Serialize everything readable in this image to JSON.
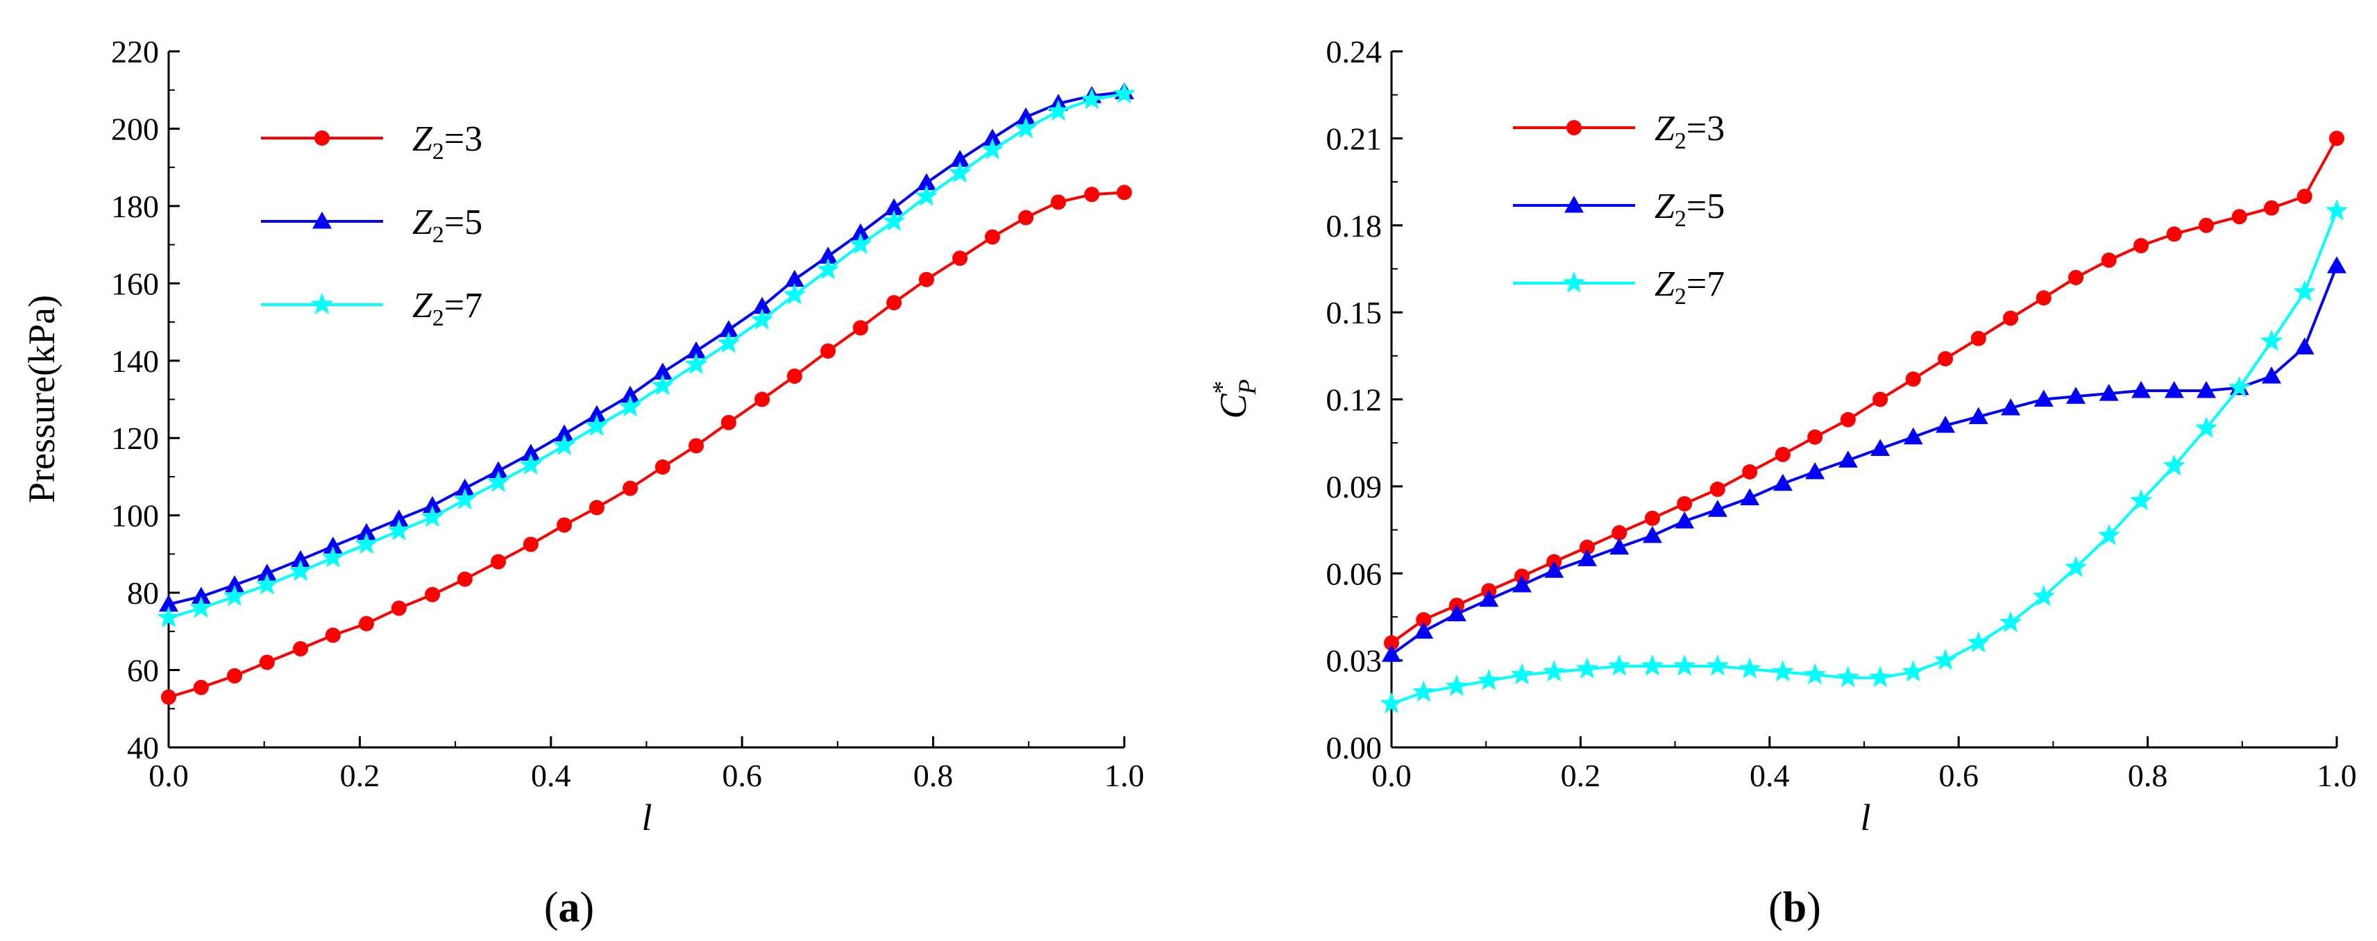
{
  "chart_data": [
    {
      "type": "line",
      "panel_label": "a",
      "xlabel": "l",
      "ylabel": "Pressure(kPa)",
      "xlim": [
        0.0,
        1.0
      ],
      "ylim": [
        40,
        220
      ],
      "xticks": [
        "0.0",
        "0.2",
        "0.4",
        "0.6",
        "0.8",
        "1.0"
      ],
      "yticks": [
        "40",
        "60",
        "80",
        "100",
        "120",
        "140",
        "160",
        "180",
        "200",
        "220"
      ],
      "legend": {
        "placement": "top-left",
        "entries": [
          {
            "var": "Z",
            "sub": "2",
            "rest": "=3"
          },
          {
            "var": "Z",
            "sub": "2",
            "rest": "=5"
          },
          {
            "var": "Z",
            "sub": "2",
            "rest": "=7"
          }
        ]
      },
      "series": [
        {
          "name": "Z2=3",
          "color": "#ff0000",
          "marker": "circle",
          "x": [
            0.0,
            0.034,
            0.069,
            0.103,
            0.138,
            0.172,
            0.207,
            0.241,
            0.276,
            0.31,
            0.345,
            0.379,
            0.414,
            0.448,
            0.483,
            0.517,
            0.552,
            0.586,
            0.621,
            0.655,
            0.69,
            0.724,
            0.759,
            0.793,
            0.828,
            0.862,
            0.897,
            0.931,
            0.966,
            1.0
          ],
          "values": [
            53,
            55.5,
            58.5,
            62,
            65.5,
            69,
            72,
            76,
            79.5,
            83.5,
            88,
            92.5,
            97.5,
            102,
            107,
            112.5,
            118,
            124,
            130,
            136,
            142.5,
            148.5,
            155,
            161,
            166.5,
            172,
            177,
            181,
            183,
            183.5
          ]
        },
        {
          "name": "Z2=5",
          "color": "#0000ff",
          "marker": "triangle",
          "x": [
            0.0,
            0.034,
            0.069,
            0.103,
            0.138,
            0.172,
            0.207,
            0.241,
            0.276,
            0.31,
            0.345,
            0.379,
            0.414,
            0.448,
            0.483,
            0.517,
            0.552,
            0.586,
            0.621,
            0.655,
            0.69,
            0.724,
            0.759,
            0.793,
            0.828,
            0.862,
            0.897,
            0.931,
            0.966,
            1.0
          ],
          "values": [
            77,
            79,
            82,
            85,
            88.5,
            92,
            95.5,
            99,
            102.5,
            107,
            111.5,
            116,
            121,
            126,
            131,
            137,
            142.5,
            148,
            154,
            161,
            167,
            173,
            179.5,
            186,
            192,
            197.5,
            203,
            206.5,
            208.5,
            209.5
          ]
        },
        {
          "name": "Z2=7",
          "color": "#00ffff",
          "marker": "star",
          "x": [
            0.0,
            0.034,
            0.069,
            0.103,
            0.138,
            0.172,
            0.207,
            0.241,
            0.276,
            0.31,
            0.345,
            0.379,
            0.414,
            0.448,
            0.483,
            0.517,
            0.552,
            0.586,
            0.621,
            0.655,
            0.69,
            0.724,
            0.759,
            0.793,
            0.828,
            0.862,
            0.897,
            0.931,
            0.966,
            1.0
          ],
          "values": [
            73.5,
            76,
            79,
            82,
            85.5,
            89,
            92.5,
            96,
            99.5,
            104,
            108.5,
            113,
            118,
            123,
            128,
            133.5,
            139,
            144.5,
            150.5,
            157,
            163.5,
            170,
            176,
            182.5,
            188.5,
            194.5,
            200,
            204.5,
            207.5,
            209
          ]
        }
      ]
    },
    {
      "type": "line",
      "panel_label": "b",
      "xlabel": "l",
      "ylabel": "C",
      "ylabel_sub": "P",
      "ylabel_sup": "*",
      "xlim": [
        0.0,
        1.0
      ],
      "ylim": [
        0.0,
        0.24
      ],
      "xticks": [
        "0.0",
        "0.2",
        "0.4",
        "0.6",
        "0.8",
        "1.0"
      ],
      "yticks": [
        "0.00",
        "0.03",
        "0.06",
        "0.09",
        "0.12",
        "0.15",
        "0.18",
        "0.21",
        "0.24"
      ],
      "legend": {
        "placement": "top-left",
        "entries": [
          {
            "var": "Z",
            "sub": "2",
            "rest": "=3"
          },
          {
            "var": "Z",
            "sub": "2",
            "rest": "=5"
          },
          {
            "var": "Z",
            "sub": "2",
            "rest": "=7"
          }
        ]
      },
      "series": [
        {
          "name": "Z2=3",
          "color": "#ff0000",
          "marker": "circle",
          "x": [
            0.0,
            0.034,
            0.069,
            0.103,
            0.138,
            0.172,
            0.207,
            0.241,
            0.276,
            0.31,
            0.345,
            0.379,
            0.414,
            0.448,
            0.483,
            0.517,
            0.552,
            0.586,
            0.621,
            0.655,
            0.69,
            0.724,
            0.759,
            0.793,
            0.828,
            0.862,
            0.897,
            0.931,
            0.966,
            1.0
          ],
          "values": [
            0.036,
            0.044,
            0.049,
            0.054,
            0.059,
            0.064,
            0.069,
            0.074,
            0.079,
            0.084,
            0.089,
            0.095,
            0.101,
            0.107,
            0.113,
            0.12,
            0.127,
            0.134,
            0.141,
            0.148,
            0.155,
            0.162,
            0.168,
            0.173,
            0.177,
            0.18,
            0.183,
            0.186,
            0.19,
            0.21
          ]
        },
        {
          "name": "Z2=5",
          "color": "#0000ff",
          "marker": "triangle",
          "x": [
            0.0,
            0.034,
            0.069,
            0.103,
            0.138,
            0.172,
            0.207,
            0.241,
            0.276,
            0.31,
            0.345,
            0.379,
            0.414,
            0.448,
            0.483,
            0.517,
            0.552,
            0.586,
            0.621,
            0.655,
            0.69,
            0.724,
            0.759,
            0.793,
            0.828,
            0.862,
            0.897,
            0.931,
            0.966,
            1.0
          ],
          "values": [
            0.032,
            0.04,
            0.046,
            0.051,
            0.056,
            0.061,
            0.065,
            0.069,
            0.073,
            0.078,
            0.082,
            0.086,
            0.091,
            0.095,
            0.099,
            0.103,
            0.107,
            0.111,
            0.114,
            0.117,
            0.12,
            0.121,
            0.122,
            0.123,
            0.123,
            0.123,
            0.124,
            0.128,
            0.138,
            0.166
          ]
        },
        {
          "name": "Z2=7",
          "color": "#00ffff",
          "marker": "star",
          "x": [
            0.0,
            0.034,
            0.069,
            0.103,
            0.138,
            0.172,
            0.207,
            0.241,
            0.276,
            0.31,
            0.345,
            0.379,
            0.414,
            0.448,
            0.483,
            0.517,
            0.552,
            0.586,
            0.621,
            0.655,
            0.69,
            0.724,
            0.759,
            0.793,
            0.828,
            0.862,
            0.897,
            0.931,
            0.966,
            1.0
          ],
          "values": [
            0.015,
            0.019,
            0.021,
            0.023,
            0.025,
            0.026,
            0.027,
            0.028,
            0.028,
            0.028,
            0.028,
            0.027,
            0.026,
            0.025,
            0.024,
            0.024,
            0.026,
            0.03,
            0.036,
            0.043,
            0.052,
            0.062,
            0.073,
            0.085,
            0.097,
            0.11,
            0.124,
            0.14,
            0.157,
            0.185
          ]
        }
      ]
    }
  ]
}
